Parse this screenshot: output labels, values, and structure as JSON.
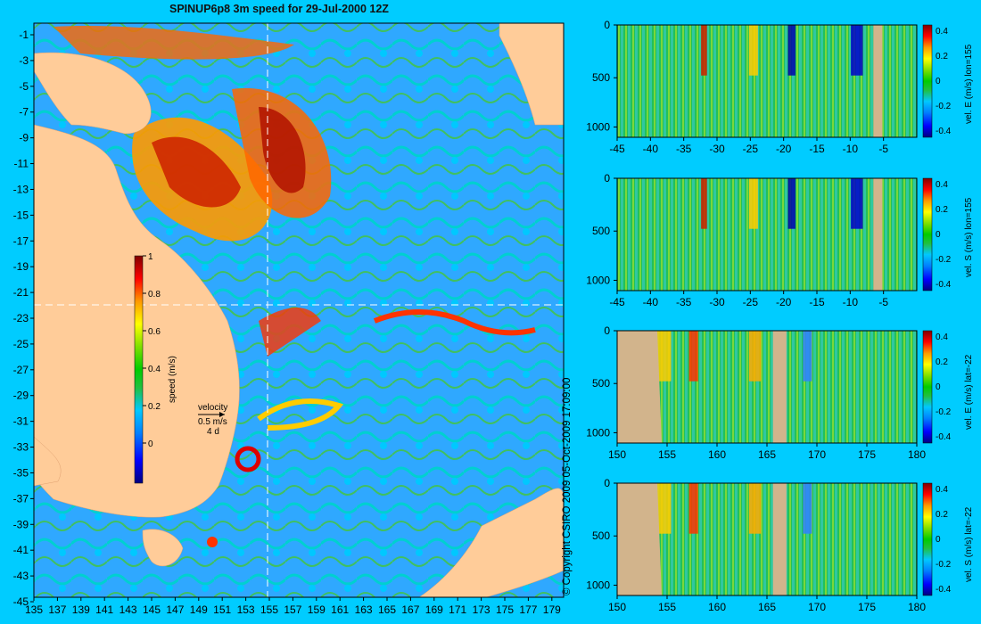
{
  "title": "SPINUP6p8 3m speed for 29-Jul-2000 12Z",
  "copyright": "© Copyright CSIRO 2009   05-Oct-2009 17:09:00",
  "map": {
    "lon_ticks": [
      "135",
      "137",
      "139",
      "141",
      "143",
      "145",
      "147",
      "149",
      "151",
      "153",
      "155",
      "157",
      "159",
      "161",
      "163",
      "165",
      "167",
      "169",
      "171",
      "173",
      "175",
      "177",
      "179"
    ],
    "lat_ticks": [
      "-1",
      "-3",
      "-5",
      "-7",
      "-9",
      "-11",
      "-13",
      "-15",
      "-17",
      "-19",
      "-21",
      "-23",
      "-25",
      "-27",
      "-29",
      "-31",
      "-33",
      "-35",
      "-37",
      "-39",
      "-41",
      "-43",
      "-45"
    ],
    "speed_colorbar": {
      "label": "speed (m/s)",
      "ticks": [
        "1",
        "0.8",
        "0.6",
        "0.4",
        "0.2",
        "0"
      ]
    },
    "velocity_legend": {
      "label": "velocity",
      "speed": "0.5 m/s",
      "interval": "4 d"
    },
    "section_lines": {
      "lon": 155,
      "lat": -22
    }
  },
  "colors": {
    "land": "#ffcc99",
    "section_land": "#d2b48c",
    "background": "#00ccff",
    "colormap": [
      "#000080",
      "#0000ff",
      "#0080ff",
      "#00c8ff",
      "#20c040",
      "#00cc00",
      "#80e000",
      "#ffff00",
      "#ff9900",
      "#ff0000",
      "#800000"
    ]
  },
  "sections": [
    {
      "label": "vel. E (m/s) lon=155",
      "x_ticks": [
        "-45",
        "-40",
        "-35",
        "-30",
        "-25",
        "-20",
        "-15",
        "-10",
        "-5"
      ],
      "y_ticks": [
        "0",
        "500",
        "1000"
      ],
      "cbar_ticks": [
        "0.4",
        "0.2",
        "0",
        "-0.2",
        "-0.4"
      ]
    },
    {
      "label": "vel. S (m/s) lon=155",
      "x_ticks": [
        "-45",
        "-40",
        "-35",
        "-30",
        "-25",
        "-20",
        "-15",
        "-10",
        "-5"
      ],
      "y_ticks": [
        "0",
        "500",
        "1000"
      ],
      "cbar_ticks": [
        "0.4",
        "0.2",
        "0",
        "-0.2",
        "-0.4"
      ]
    },
    {
      "label": "vel. E (m/s) lat=-22",
      "x_ticks": [
        "150",
        "155",
        "160",
        "165",
        "170",
        "175",
        "180"
      ],
      "y_ticks": [
        "0",
        "500",
        "1000"
      ],
      "cbar_ticks": [
        "0.4",
        "0.2",
        "0",
        "-0.2",
        "-0.4"
      ]
    },
    {
      "label": "vel. S (m/s) lat=-22",
      "x_ticks": [
        "150",
        "155",
        "160",
        "165",
        "170",
        "175",
        "180"
      ],
      "y_ticks": [
        "0",
        "500",
        "1000"
      ],
      "cbar_ticks": [
        "0.4",
        "0.2",
        "0",
        "-0.2",
        "-0.4"
      ]
    }
  ]
}
